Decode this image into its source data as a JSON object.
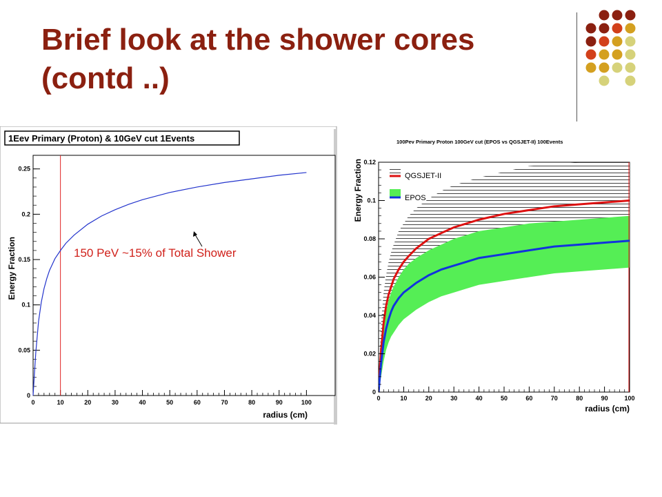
{
  "slide": {
    "title": "Brief look at  the shower cores (contd ..)"
  },
  "decoration": {
    "dot_colors": [
      "#8B2010",
      "#D2401A",
      "#D4A020",
      "#D6D27A"
    ]
  },
  "chart_data": [
    {
      "type": "line",
      "title": "1Eev Primary (Proton) & 10GeV cut 1Events",
      "xlabel": "radius (cm)",
      "ylabel": "Energy Fraction",
      "xlim": [
        0,
        100
      ],
      "ylim": [
        0,
        0.265
      ],
      "xticks": [
        "0",
        "10",
        "20",
        "30",
        "40",
        "50",
        "60",
        "70",
        "80",
        "90",
        "100"
      ],
      "yticks": [
        "0",
        "0.05",
        "0.1",
        "0.15",
        "0.2",
        "0.25"
      ],
      "series": [
        {
          "color": "#2233CC",
          "x": [
            0,
            0.5,
            1,
            2,
            3,
            4,
            5,
            6,
            8,
            10,
            12,
            15,
            20,
            25,
            30,
            35,
            40,
            50,
            60,
            70,
            80,
            90,
            100
          ],
          "y": [
            0,
            0.025,
            0.048,
            0.082,
            0.103,
            0.118,
            0.129,
            0.138,
            0.151,
            0.16,
            0.168,
            0.177,
            0.189,
            0.198,
            0.205,
            0.211,
            0.216,
            0.224,
            0.23,
            0.235,
            0.239,
            0.243,
            0.246
          ]
        }
      ],
      "vline": {
        "x": 10,
        "color": "#E02020"
      },
      "annotation": {
        "text": "150 PeV  ~15% of Total Shower",
        "color": "#D0201A"
      }
    },
    {
      "type": "line",
      "title": "100Pev Primary Proton 100GeV cut (EPOS vs QGSJET-II) 100Events",
      "xlabel": "radius (cm)",
      "ylabel": "Energy Fraction",
      "xlim": [
        0,
        100
      ],
      "ylim": [
        0,
        0.12
      ],
      "xticks": [
        "0",
        "10",
        "20",
        "30",
        "40",
        "50",
        "60",
        "70",
        "80",
        "90",
        "100"
      ],
      "yticks": [
        "0",
        "0.02",
        "0.04",
        "0.06",
        "0.08",
        "0.1",
        "0.12"
      ],
      "legend": [
        {
          "label": "QGSJET-II",
          "line_color": "#DD1111",
          "band": "hatched-black"
        },
        {
          "label": "EPOS",
          "line_color": "#1133DD",
          "band": "#55EE55"
        }
      ],
      "series": [
        {
          "name": "QGSJET-II",
          "color": "#DD1111",
          "x": [
            0,
            0.5,
            1,
            2,
            3,
            4,
            5,
            6,
            8,
            10,
            12,
            15,
            20,
            25,
            30,
            35,
            40,
            50,
            60,
            70,
            80,
            90,
            100
          ],
          "y": [
            0,
            0.012,
            0.022,
            0.036,
            0.045,
            0.051,
            0.055,
            0.059,
            0.064,
            0.068,
            0.071,
            0.075,
            0.08,
            0.083,
            0.086,
            0.088,
            0.09,
            0.093,
            0.095,
            0.097,
            0.098,
            0.099,
            0.1
          ],
          "band_upper": [
            0,
            0.022,
            0.036,
            0.052,
            0.061,
            0.068,
            0.073,
            0.077,
            0.084,
            0.088,
            0.092,
            0.096,
            0.101,
            0.105,
            0.108,
            0.11,
            0.112,
            0.115,
            0.118,
            0.119,
            0.12,
            0.12,
            0.12
          ],
          "band_lower": [
            0,
            0.006,
            0.012,
            0.022,
            0.029,
            0.034,
            0.038,
            0.041,
            0.046,
            0.05,
            0.053,
            0.057,
            0.062,
            0.066,
            0.069,
            0.071,
            0.073,
            0.077,
            0.08,
            0.082,
            0.084,
            0.085,
            0.086
          ]
        },
        {
          "name": "EPOS",
          "color": "#1133DD",
          "x": [
            0,
            0.5,
            1,
            2,
            3,
            4,
            5,
            6,
            8,
            10,
            12,
            15,
            20,
            25,
            30,
            35,
            40,
            50,
            60,
            70,
            80,
            90,
            100
          ],
          "y": [
            0,
            0.008,
            0.015,
            0.026,
            0.033,
            0.038,
            0.042,
            0.045,
            0.049,
            0.052,
            0.054,
            0.057,
            0.061,
            0.064,
            0.066,
            0.068,
            0.07,
            0.072,
            0.074,
            0.076,
            0.077,
            0.078,
            0.079
          ],
          "band_upper": [
            0,
            0.013,
            0.022,
            0.034,
            0.042,
            0.048,
            0.052,
            0.055,
            0.06,
            0.064,
            0.067,
            0.07,
            0.074,
            0.077,
            0.08,
            0.082,
            0.084,
            0.086,
            0.088,
            0.089,
            0.09,
            0.091,
            0.092
          ],
          "band_lower": [
            0,
            0.004,
            0.008,
            0.016,
            0.022,
            0.026,
            0.029,
            0.031,
            0.035,
            0.038,
            0.04,
            0.043,
            0.047,
            0.05,
            0.052,
            0.054,
            0.056,
            0.058,
            0.06,
            0.062,
            0.063,
            0.064,
            0.065
          ]
        }
      ]
    }
  ]
}
